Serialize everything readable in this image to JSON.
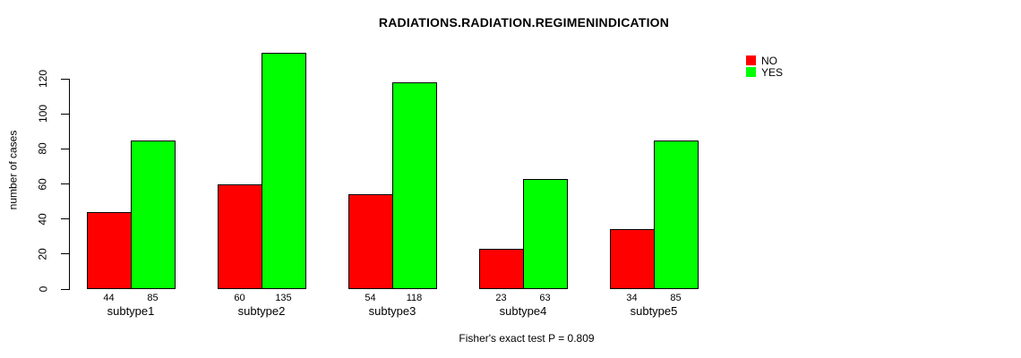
{
  "chart_data": {
    "type": "bar",
    "title": "RADIATIONS.RADIATION.REGIMENINDICATION",
    "ylabel": "number of cases",
    "xlabel": "",
    "categories": [
      "subtype1",
      "subtype2",
      "subtype3",
      "subtype4",
      "subtype5"
    ],
    "series": [
      {
        "name": "NO",
        "color": "#FF0000",
        "values": [
          44,
          60,
          54,
          23,
          34
        ]
      },
      {
        "name": "YES",
        "color": "#00FF00",
        "values": [
          85,
          135,
          118,
          63,
          85
        ]
      }
    ],
    "yticks": [
      0,
      20,
      40,
      60,
      80,
      100,
      120
    ],
    "ylim": [
      0,
      120
    ],
    "grid": false,
    "legend_position": "top-right",
    "bar_value_labels_shown": true,
    "footnote": "Fisher's exact test P = 0.809"
  }
}
